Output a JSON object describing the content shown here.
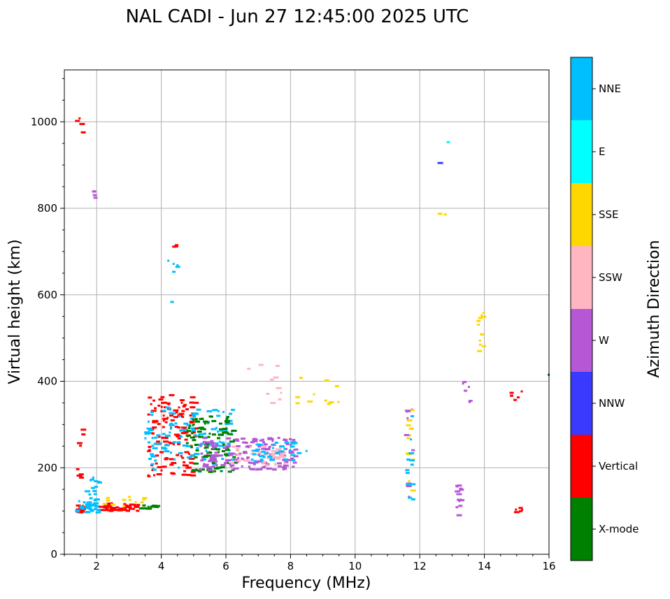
{
  "chart_data": {
    "type": "scatter",
    "title": "NAL CADI - Jun 27 12:45:00 2025 UTC",
    "xlabel": "Frequency (MHz)",
    "ylabel": "Virtual height (km)",
    "xlim": [
      1,
      16
    ],
    "ylim": [
      0,
      1120
    ],
    "xticks": [
      2,
      4,
      6,
      8,
      10,
      12,
      14,
      16
    ],
    "yticks": [
      0,
      200,
      400,
      600,
      800,
      1000
    ],
    "grid": true,
    "colorbar": {
      "label": "Azimuth Direction",
      "categories": [
        {
          "name": "X-mode",
          "color": "#008000"
        },
        {
          "name": "Vertical",
          "color": "#ff0000"
        },
        {
          "name": "NNW",
          "color": "#3a3aff"
        },
        {
          "name": "W",
          "color": "#b657d6"
        },
        {
          "name": "SSW",
          "color": "#ffb6c1"
        },
        {
          "name": "SSE",
          "color": "#ffd700"
        },
        {
          "name": "E",
          "color": "#00ffff"
        },
        {
          "name": "NNE",
          "color": "#00bfff"
        }
      ]
    },
    "clusters": [
      {
        "cat": "Vertical",
        "f": [
          1.4,
          1.6
        ],
        "h": [
          95,
          115
        ],
        "n": 22
      },
      {
        "cat": "NNE",
        "f": [
          1.4,
          2.1
        ],
        "h": [
          90,
          125
        ],
        "n": 22
      },
      {
        "cat": "Vertical",
        "f": [
          2.0,
          3.3
        ],
        "h": [
          100,
          118
        ],
        "n": 45
      },
      {
        "cat": "SSE",
        "f": [
          2.2,
          3.5
        ],
        "h": [
          110,
          135
        ],
        "n": 12
      },
      {
        "cat": "X-mode",
        "f": [
          3.4,
          3.9
        ],
        "h": [
          105,
          115
        ],
        "n": 14
      },
      {
        "cat": "NNE",
        "f": [
          1.7,
          2.1
        ],
        "h": [
          95,
          185
        ],
        "n": 25
      },
      {
        "cat": "Vertical",
        "f": [
          3.6,
          5.1
        ],
        "h": [
          180,
          370
        ],
        "n": 130
      },
      {
        "cat": "NNE",
        "f": [
          3.5,
          6.3
        ],
        "h": [
          190,
          340
        ],
        "n": 120
      },
      {
        "cat": "X-mode",
        "f": [
          4.8,
          6.3
        ],
        "h": [
          190,
          320
        ],
        "n": 100
      },
      {
        "cat": "W",
        "f": [
          5.2,
          8.2
        ],
        "h": [
          195,
          270
        ],
        "n": 160
      },
      {
        "cat": "SSW",
        "f": [
          6.2,
          8.0
        ],
        "h": [
          205,
          250
        ],
        "n": 40
      },
      {
        "cat": "NNE",
        "f": [
          6.8,
          8.5
        ],
        "h": [
          215,
          260
        ],
        "n": 35
      },
      {
        "cat": "Vertical",
        "f": [
          1.4,
          1.6
        ],
        "h": [
          170,
          300
        ],
        "n": 8
      },
      {
        "cat": "Vertical",
        "f": [
          1.4,
          1.6
        ],
        "h": [
          975,
          1012
        ],
        "n": 4
      },
      {
        "cat": "W",
        "f": [
          1.9,
          2.0
        ],
        "h": [
          820,
          840
        ],
        "n": 5
      },
      {
        "cat": "Vertical",
        "f": [
          4.3,
          4.5
        ],
        "h": [
          700,
          740
        ],
        "n": 4
      },
      {
        "cat": "NNE",
        "f": [
          4.2,
          4.6
        ],
        "h": [
          580,
          690
        ],
        "n": 6
      },
      {
        "cat": "SSE",
        "f": [
          8.1,
          9.5
        ],
        "h": [
          345,
          410
        ],
        "n": 12
      },
      {
        "cat": "SSW",
        "f": [
          6.6,
          8.0
        ],
        "h": [
          345,
          450
        ],
        "n": 10
      },
      {
        "cat": "W",
        "f": [
          11.6,
          11.8
        ],
        "h": [
          100,
          340
        ],
        "n": 10
      },
      {
        "cat": "SSE",
        "f": [
          11.6,
          11.8
        ],
        "h": [
          100,
          340
        ],
        "n": 12
      },
      {
        "cat": "NNE",
        "f": [
          11.6,
          11.8
        ],
        "h": [
          100,
          340
        ],
        "n": 12
      },
      {
        "cat": "W",
        "f": [
          13.1,
          13.3
        ],
        "h": [
          90,
          160
        ],
        "n": 14
      },
      {
        "cat": "W",
        "f": [
          13.3,
          13.6
        ],
        "h": [
          345,
          400
        ],
        "n": 6
      },
      {
        "cat": "SSE",
        "f": [
          13.8,
          14.0
        ],
        "h": [
          460,
          570
        ],
        "n": 12
      },
      {
        "cat": "Vertical",
        "f": [
          14.8,
          15.2
        ],
        "h": [
          90,
          110
        ],
        "n": 5
      },
      {
        "cat": "Vertical",
        "f": [
          14.8,
          15.2
        ],
        "h": [
          345,
          380
        ],
        "n": 5
      },
      {
        "cat": "NNW",
        "f": [
          12.5,
          12.8
        ],
        "h": [
          895,
          905
        ],
        "n": 1
      },
      {
        "cat": "E",
        "f": [
          12.8,
          13.1
        ],
        "h": [
          950,
          958
        ],
        "n": 1
      },
      {
        "cat": "SSE",
        "f": [
          12.5,
          12.8
        ],
        "h": [
          740,
          825
        ],
        "n": 2
      },
      {
        "cat": "X-mode",
        "f": [
          15.6,
          16.0
        ],
        "h": [
          412,
          416
        ],
        "n": 1
      }
    ]
  }
}
